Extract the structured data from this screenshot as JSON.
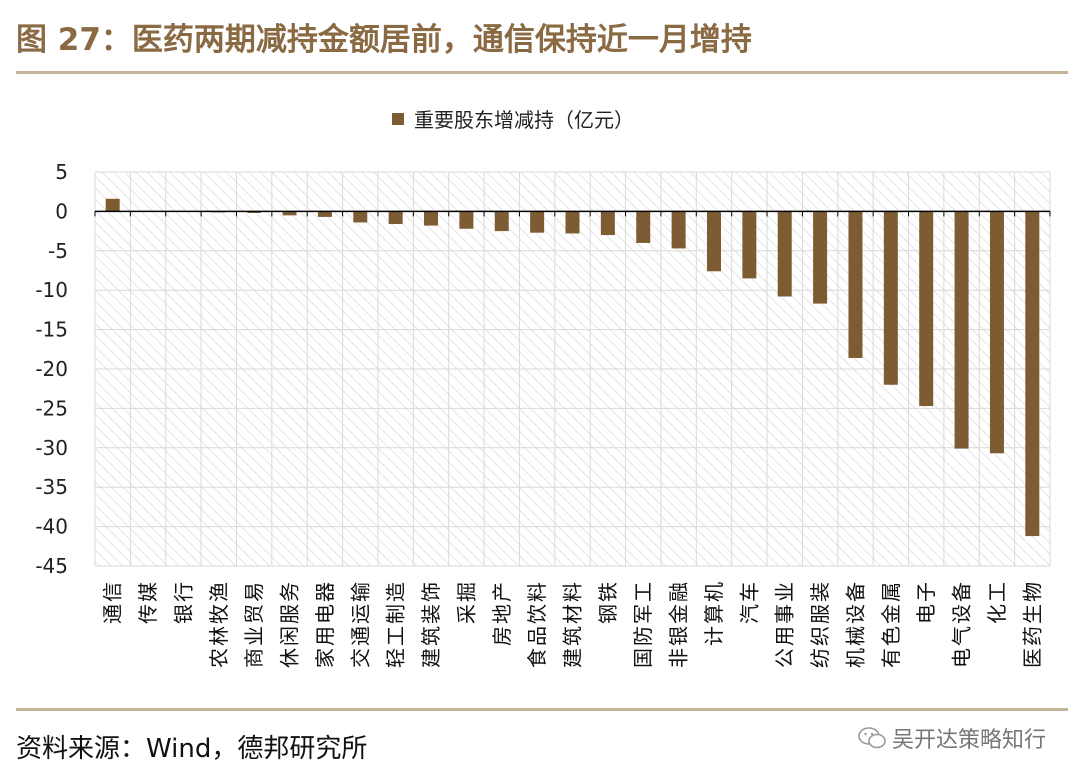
{
  "title": "图 27：医药两期减持金额居前，通信保持近一月增持",
  "source": "资料来源：Wind，德邦研究所",
  "watermark": "吴开达策略知行",
  "colors": {
    "bar": "#7d5c34",
    "title": "#8a6a43",
    "rule": "#c4b49c",
    "hatch": "#e6e6e6"
  },
  "chart_data": {
    "type": "bar",
    "title": "",
    "xlabel": "",
    "ylabel": "",
    "ylim": [
      -45,
      5
    ],
    "yticks": [
      5,
      0,
      -5,
      -10,
      -15,
      -20,
      -25,
      -30,
      -35,
      -40,
      -45
    ],
    "grid": true,
    "legend_position": "top-center",
    "series": [
      {
        "name": "重要股东增减持（亿元）",
        "values": [
          1.6,
          0.0,
          0.0,
          -0.1,
          -0.2,
          -0.5,
          -0.7,
          -1.4,
          -1.6,
          -1.8,
          -2.2,
          -2.5,
          -2.7,
          -2.8,
          -3.0,
          -4.0,
          -4.7,
          -7.6,
          -8.5,
          -10.8,
          -11.7,
          -18.6,
          -22.0,
          -24.7,
          -30.1,
          -30.7,
          -41.2
        ]
      }
    ],
    "categories": [
      "通信",
      "传媒",
      "银行",
      "农林牧渔",
      "商业贸易",
      "休闲服务",
      "家用电器",
      "交通运输",
      "轻工制造",
      "建筑装饰",
      "采掘",
      "房地产",
      "食品饮料",
      "建筑材料",
      "钢铁",
      "国防军工",
      "非银金融",
      "计算机",
      "汽车",
      "公用事业",
      "纺织服装",
      "机械设备",
      "有色金属",
      "电子",
      "电气设备",
      "化工",
      "医药生物"
    ]
  }
}
